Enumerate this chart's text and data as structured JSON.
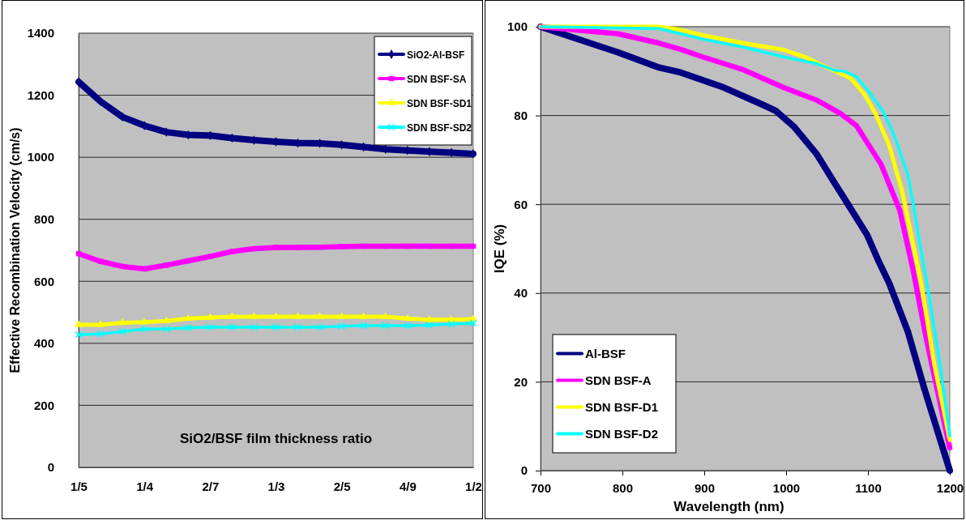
{
  "chart_data": [
    {
      "type": "line",
      "xlabel": "SiO2/BSF film thickness ratio",
      "ylabel": "Effective Recombination Velocity (cm/s)",
      "categories": [
        "1/5",
        null,
        null,
        "1/4",
        null,
        null,
        "2/7",
        null,
        null,
        "1/3",
        null,
        null,
        "2/5",
        null,
        null,
        "4/9",
        null,
        null,
        "1/2"
      ],
      "ylim": [
        0,
        1400
      ],
      "yticks": [
        0,
        200,
        400,
        600,
        800,
        1000,
        1200,
        1400
      ],
      "grid": "y",
      "legend": "top right",
      "series": [
        {
          "name": "SiO2-Al-BSF",
          "color": "#000080",
          "marker": "diamond",
          "values": [
            1243,
            1180,
            1130,
            1102,
            1081,
            1072,
            1070,
            1062,
            1055,
            1050,
            1046,
            1045,
            1040,
            1033,
            1026,
            1022,
            1018,
            1015,
            1011
          ]
        },
        {
          "name": "SDN BSF-SA",
          "color": "#ff00ff",
          "marker": "square",
          "values": [
            689,
            664,
            648,
            640,
            652,
            666,
            680,
            696,
            705,
            709,
            709,
            710,
            712,
            713,
            713,
            713,
            713,
            713,
            713
          ]
        },
        {
          "name": "SDN BSF-SD1",
          "color": "#ffff00",
          "marker": "triangle",
          "values": [
            460,
            460,
            466,
            468,
            472,
            480,
            483,
            486,
            486,
            486,
            486,
            486,
            486,
            486,
            486,
            480,
            476,
            476,
            478
          ]
        },
        {
          "name": "SDN BSF-SD2",
          "color": "#00ffff",
          "marker": "cross",
          "values": [
            428,
            430,
            438,
            446,
            446,
            450,
            452,
            452,
            452,
            452,
            452,
            452,
            455,
            457,
            457,
            457,
            459,
            462,
            465
          ]
        }
      ]
    },
    {
      "type": "line",
      "xlabel": "Wavelength (nm)",
      "ylabel": "IQE (%)",
      "xlim": [
        700,
        1200
      ],
      "xticks": [
        700,
        800,
        900,
        1000,
        1100,
        1200
      ],
      "ylim": [
        0,
        100
      ],
      "yticks": [
        0,
        20,
        40,
        60,
        80,
        100
      ],
      "grid": "y",
      "legend": "bottom left",
      "series": [
        {
          "name": "Al-BSF",
          "color": "#000080",
          "x": [
            700,
            795,
            845,
            871,
            924,
            973,
            987,
            1010,
            1037,
            1062,
            1076,
            1099,
            1112,
            1126,
            1149,
            1168,
            1200
          ],
          "values": [
            100,
            94.2,
            90.8,
            89.7,
            86.3,
            82.3,
            81.1,
            77.4,
            71.4,
            64,
            59.9,
            53.1,
            47.6,
            42.2,
            31.2,
            19,
            0
          ]
        },
        {
          "name": "SDN BSF-A",
          "color": "#ff00ff",
          "x": [
            700,
            795,
            845,
            871,
            898,
            924,
            948,
            997,
            1037,
            1066,
            1086,
            1116,
            1139,
            1155,
            1171,
            1185,
            1200
          ],
          "values": [
            100,
            98.4,
            96.3,
            94.9,
            93.2,
            91.7,
            90.3,
            86.3,
            83.5,
            80.5,
            77.7,
            69,
            58.6,
            45.3,
            30,
            17.9,
            5.1
          ]
        },
        {
          "name": "SDN BSF-D1",
          "color": "#ffff00",
          "x": [
            700,
            845,
            871,
            898,
            948,
            997,
            1023,
            1043,
            1079,
            1096,
            1109,
            1126,
            1142,
            1165,
            1181,
            1200
          ],
          "values": [
            100,
            100,
            99.3,
            98.1,
            96.3,
            94.8,
            93.2,
            91.4,
            88.4,
            84.7,
            80.5,
            73.2,
            62.8,
            42.2,
            23.9,
            6.9
          ]
        },
        {
          "name": "SDN BSF-D2",
          "color": "#00ffff",
          "x": [
            700,
            845,
            898,
            948,
            997,
            1037,
            1059,
            1072,
            1086,
            1099,
            1119,
            1132,
            1149,
            1155,
            1161,
            1175,
            1188,
            1200
          ],
          "values": [
            100,
            99.6,
            97.2,
            95.4,
            93.2,
            91.7,
            90.2,
            89.9,
            88.7,
            85.9,
            80.8,
            75.6,
            66.5,
            60.4,
            53.7,
            39,
            23.9,
            7.8
          ]
        }
      ]
    }
  ]
}
